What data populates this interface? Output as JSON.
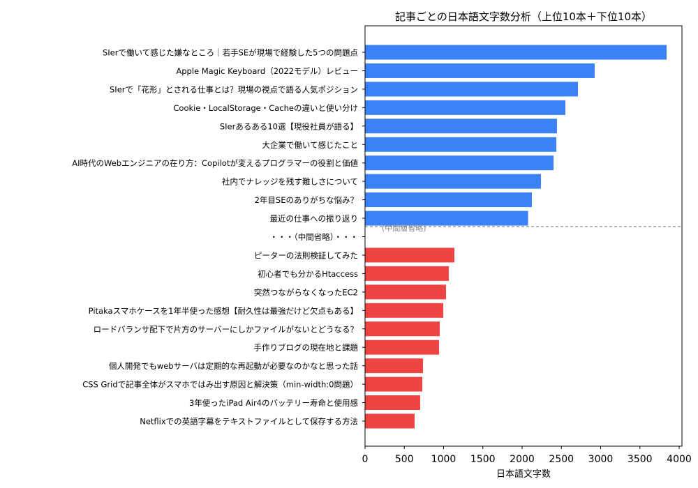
{
  "chart_data": {
    "type": "bar",
    "orientation": "horizontal",
    "title": "記事ごとの日本語文字数分析（上位10本＋下位10本）",
    "xlabel": "日本語文字数",
    "ylabel": "",
    "xlim": [
      0,
      4050
    ],
    "xticks": [
      0,
      500,
      1000,
      1500,
      2000,
      2500,
      3000,
      3500,
      4000
    ],
    "grid": false,
    "separator_label": "・・・（中間省略）・・・",
    "separator_annotation": "(中間層省略)",
    "colors": {
      "top": "#3b82f6",
      "bottom": "#ef4444",
      "separator": "#888888"
    },
    "series": [
      {
        "group": "top",
        "categories": [
          "SIerで働いて感じた嫌なところ｜若手SEが現場で経験した5つの問題点",
          "Apple Magic Keyboard（2022モデル）レビュー",
          "SIerで「花形」とされる仕事とは？現場の視点で語る人気ポジション",
          "Cookie・LocalStorage・Cacheの違いと使い分け",
          "SIerあるある10選【現役社員が語る】",
          "大企業で働いて感じたこと",
          "AI時代のWebエンジニアの在り方：Copilotが変えるプログラマーの役割と価値",
          "社内でナレッジを残す難しさについて",
          "2年目SEのありがちな悩み？",
          "最近の仕事への振り返り"
        ],
        "values": [
          3840,
          2924,
          2711,
          2551,
          2444,
          2436,
          2400,
          2240,
          2124,
          2076
        ]
      },
      {
        "group": "bottom",
        "categories": [
          "ピーターの法則検証してみた",
          "初心者でも分かるHtaccess",
          "突然つながらなくなったEC2",
          "Pitakaスマホケースを1年半使った感想【耐久性は最強だけど欠点もある】",
          "ロードバランサ配下で片方のサーバーにしかファイルがないとどうなる？",
          "手作りブログの現在地と課題",
          "個人開発でもwebサーバは定期的な再起動が必要なのかなと思った話",
          "CSS Gridで記事全体がスマホではみ出す原因と解決策（min-width:0問題）",
          "3年使ったiPad Air4のバッテリー寿命と使用感",
          "Netflixでの英語字幕をテキストファイルとして保存する方法"
        ],
        "values": [
          1138,
          1067,
          1031,
          996,
          951,
          942,
          738,
          729,
          702,
          631
        ]
      }
    ]
  }
}
